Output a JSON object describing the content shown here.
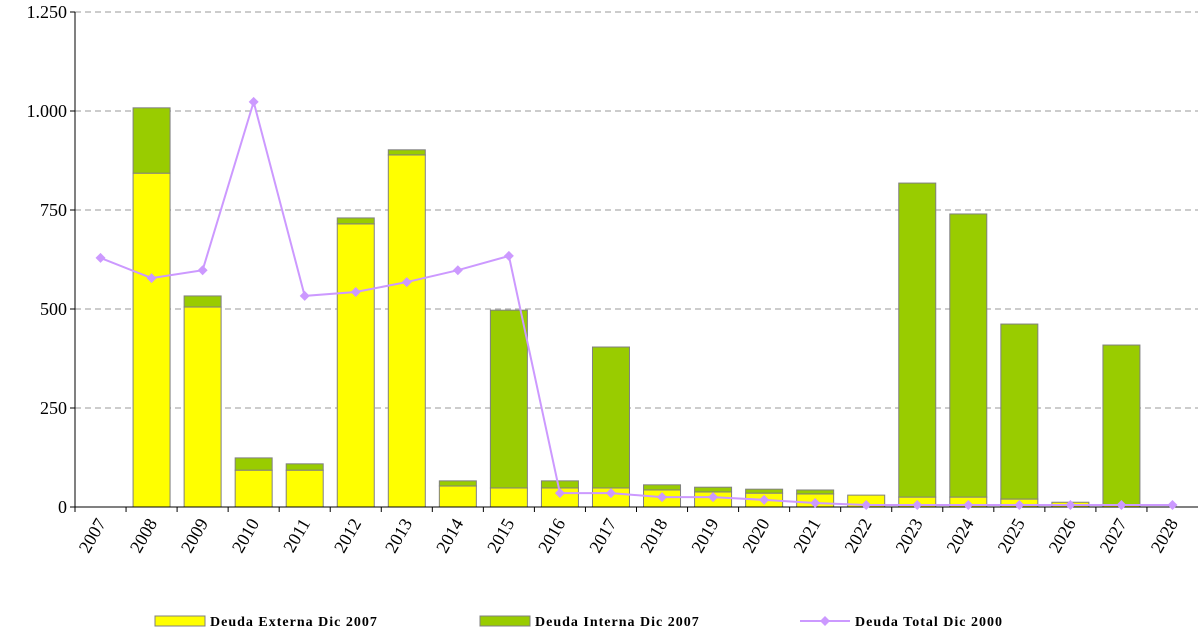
{
  "chart_data": {
    "type": "stacked-bar-line",
    "categories": [
      "2007",
      "2008",
      "2009",
      "2010",
      "2011",
      "2012",
      "2013",
      "2014",
      "2015",
      "2016",
      "2017",
      "2018",
      "2019",
      "2020",
      "2021",
      "2022",
      "2023",
      "2024",
      "2025",
      "2026",
      "2027",
      "2028"
    ],
    "series": [
      {
        "name": "Deuda Externa Dic 2007",
        "color": "#ffff00",
        "kind": "bar",
        "values": [
          0,
          843,
          505,
          93,
          93,
          715,
          889,
          53,
          48,
          48,
          48,
          43,
          38,
          35,
          33,
          30,
          25,
          25,
          20,
          12,
          5,
          0
        ]
      },
      {
        "name": "Deuda Interna Dic 2007",
        "color": "#99cc00",
        "kind": "bar",
        "values": [
          0,
          165,
          28,
          31,
          16,
          15,
          13,
          13,
          449,
          18,
          356,
          13,
          12,
          10,
          10,
          0,
          793,
          715,
          442,
          0,
          404,
          0
        ]
      },
      {
        "name": "Deuda Total Dic 2000",
        "color": "#cc99ff",
        "kind": "line",
        "values": [
          629,
          578,
          598,
          1023,
          533,
          543,
          568,
          598,
          634,
          35,
          35,
          25,
          25,
          18,
          10,
          5,
          5,
          5,
          5,
          5,
          5,
          5
        ]
      }
    ],
    "ylim": [
      0,
      1250
    ],
    "yticks": [
      0,
      250,
      500,
      750,
      {
        "value": 1000,
        "label": "1.000"
      },
      {
        "value": 1250,
        "label": "1.250"
      }
    ],
    "grid": true
  }
}
